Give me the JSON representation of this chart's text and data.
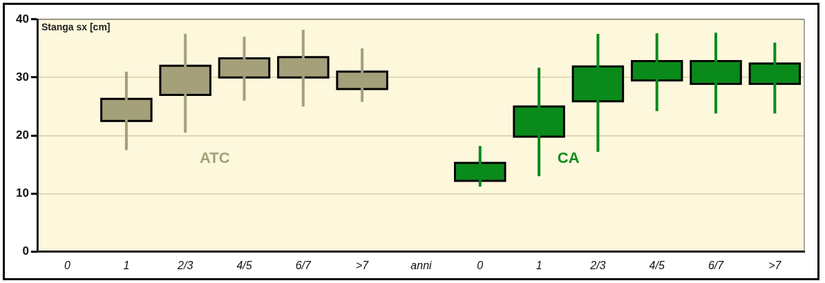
{
  "chart_data": {
    "type": "candlestick",
    "ylabel": "Stanga sx [cm]",
    "categories": [
      "0",
      "1",
      "2/3",
      "4/5",
      "6/7",
      ">7",
      "anni",
      "0",
      "1",
      "2/3",
      "4/5",
      "6/7",
      ">7"
    ],
    "series": [
      {
        "name": "ATC",
        "color": "#a3a07a",
        "ohlc": [
          null,
          [
            22.5,
            31,
            17.5,
            26.3
          ],
          [
            27,
            37.5,
            20.5,
            32
          ],
          [
            30,
            37,
            26,
            33.3
          ],
          [
            30,
            38.2,
            25,
            33.5
          ],
          [
            28,
            35,
            25.8,
            31
          ],
          null,
          null,
          null,
          null,
          null,
          null,
          null
        ]
      },
      {
        "name": "CA",
        "color": "#0a8a1a",
        "ohlc": [
          null,
          null,
          null,
          null,
          null,
          null,
          null,
          [
            12.2,
            18.2,
            11.2,
            15.3
          ],
          [
            19.8,
            31.7,
            13,
            25
          ],
          [
            25.9,
            37.5,
            17.2,
            31.9
          ],
          [
            29.5,
            37.6,
            24.2,
            32.8
          ],
          [
            28.9,
            37.7,
            23.8,
            32.8
          ],
          [
            28.9,
            36,
            23.8,
            32.4
          ]
        ]
      }
    ],
    "ylim": [
      0,
      40
    ],
    "yticks": [
      0,
      10,
      20,
      30,
      40
    ],
    "grid": "y",
    "legend": false
  }
}
